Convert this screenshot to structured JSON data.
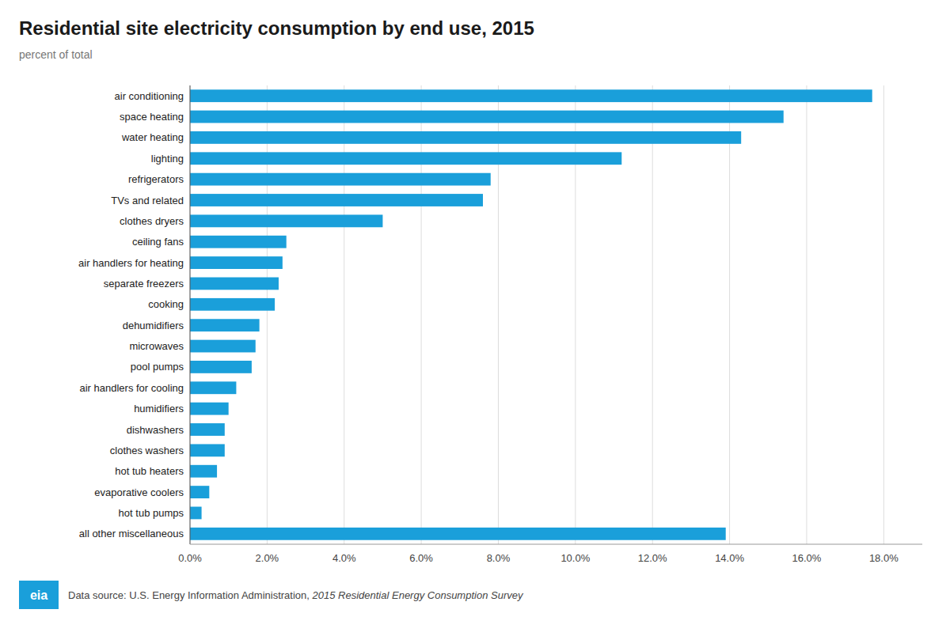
{
  "chart_data": {
    "type": "bar",
    "orientation": "horizontal",
    "title": "Residential site electricity consumption by end use, 2015",
    "subtitle": "percent of total",
    "categories": [
      "air conditioning",
      "space heating",
      "water heating",
      "lighting",
      "refrigerators",
      "TVs and related",
      "clothes dryers",
      "ceiling fans",
      "air handlers for heating",
      "separate freezers",
      "cooking",
      "dehumidifiers",
      "microwaves",
      "pool pumps",
      "air handlers for cooling",
      "humidifiers",
      "dishwashers",
      "clothes washers",
      "hot tub heaters",
      "evaporative coolers",
      "hot tub pumps",
      "all other miscellaneous"
    ],
    "values": [
      0.177,
      0.154,
      0.143,
      0.112,
      0.078,
      0.076,
      0.05,
      0.025,
      0.024,
      0.023,
      0.022,
      0.018,
      0.017,
      0.016,
      0.012,
      0.01,
      0.009,
      0.009,
      0.007,
      0.005,
      0.003,
      0.139
    ],
    "color": "#1a9fda",
    "xlim": [
      0,
      0.19
    ],
    "xticks": [
      {
        "value": 0.0,
        "label": "0.0%"
      },
      {
        "value": 0.02,
        "label": "2.0%"
      },
      {
        "value": 0.04,
        "label": "4.0%"
      },
      {
        "value": 0.06,
        "label": "6.0%"
      },
      {
        "value": 0.08,
        "label": "8.0%"
      },
      {
        "value": 0.1,
        "label": "10.0%"
      },
      {
        "value": 0.12,
        "label": "12.0%"
      },
      {
        "value": 0.14,
        "label": "14.0%"
      },
      {
        "value": 0.16,
        "label": "16.0%"
      },
      {
        "value": 0.18,
        "label": "18.0%"
      }
    ],
    "grid": true,
    "annotations": [
      "eia",
      "Data source: U.S. Energy Information Administration, ",
      "2015 Residential Energy Consumption Survey"
    ]
  }
}
